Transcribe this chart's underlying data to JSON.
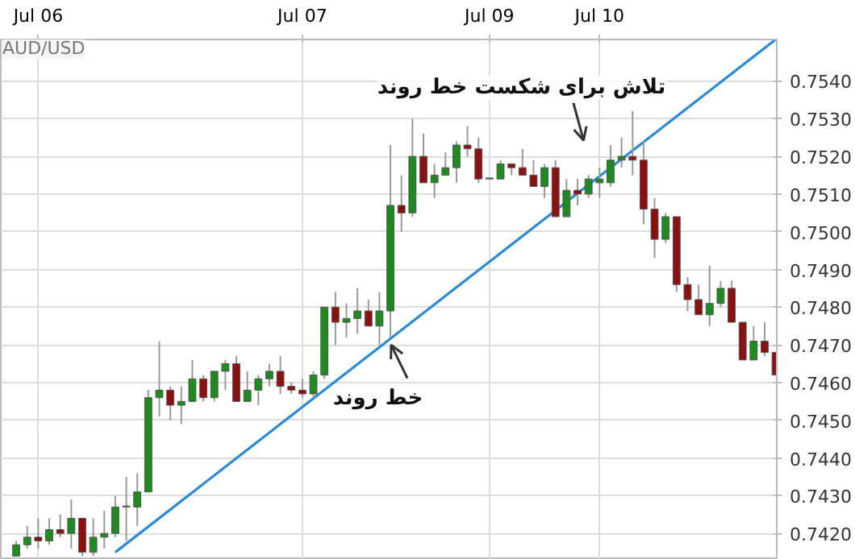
{
  "chart_data": {
    "type": "candlestick",
    "title": "AUD/USD",
    "categories": [
      null,
      null,
      "Jul 06",
      null,
      null,
      null,
      null,
      null,
      null,
      null,
      null,
      null,
      null,
      null,
      null,
      null,
      null,
      null,
      null,
      null,
      null,
      null,
      null,
      null,
      null,
      null,
      "Jul 07",
      null,
      null,
      null,
      null,
      null,
      null,
      null,
      null,
      null,
      null,
      null,
      null,
      null,
      null,
      null,
      null,
      "Jul 09",
      null,
      null,
      null,
      null,
      null,
      null,
      null,
      null,
      null,
      "Jul 10",
      null,
      null,
      null,
      null,
      null,
      null,
      null,
      null,
      null,
      null,
      null,
      null,
      null,
      null,
      null,
      null
    ],
    "ohlc": [
      [
        0.7414,
        0.7418,
        0.7414,
        0.7417
      ],
      [
        0.7417,
        0.7422,
        0.7416,
        0.7419
      ],
      [
        0.7419,
        0.7424,
        0.7416,
        0.7418
      ],
      [
        0.7418,
        0.7424,
        0.7417,
        0.7421
      ],
      [
        0.7421,
        0.7425,
        0.7419,
        0.742
      ],
      [
        0.742,
        0.7429,
        0.7416,
        0.7424
      ],
      [
        0.7424,
        0.7424,
        0.7414,
        0.7415
      ],
      [
        0.7415,
        0.7424,
        0.7414,
        0.7419
      ],
      [
        0.7419,
        0.7426,
        0.7416,
        0.742
      ],
      [
        0.742,
        0.743,
        0.7419,
        0.7427
      ],
      [
        0.7427,
        0.7435,
        0.7418,
        0.7427
      ],
      [
        0.7427,
        0.7436,
        0.7422,
        0.7431
      ],
      [
        0.7431,
        0.7458,
        0.7431,
        0.7456
      ],
      [
        0.7456,
        0.7471,
        0.7451,
        0.7458
      ],
      [
        0.7458,
        0.7459,
        0.745,
        0.7454
      ],
      [
        0.7454,
        0.7459,
        0.7449,
        0.7455
      ],
      [
        0.7455,
        0.7466,
        0.7455,
        0.7461
      ],
      [
        0.7461,
        0.7462,
        0.7455,
        0.7456
      ],
      [
        0.7456,
        0.7463,
        0.7455,
        0.7463
      ],
      [
        0.7463,
        0.7466,
        0.7458,
        0.7465
      ],
      [
        0.7465,
        0.7467,
        0.7455,
        0.7455
      ],
      [
        0.7455,
        0.7463,
        0.7455,
        0.7458
      ],
      [
        0.7458,
        0.7462,
        0.7454,
        0.7461
      ],
      [
        0.7461,
        0.7465,
        0.7459,
        0.7463
      ],
      [
        0.7463,
        0.7467,
        0.7457,
        0.7459
      ],
      [
        0.7459,
        0.746,
        0.7457,
        0.7458
      ],
      [
        0.7458,
        0.7461,
        0.7456,
        0.7457
      ],
      [
        0.7457,
        0.7463,
        0.7456,
        0.7462
      ],
      [
        0.7462,
        0.748,
        0.7461,
        0.748
      ],
      [
        0.748,
        0.7484,
        0.747,
        0.7476
      ],
      [
        0.7476,
        0.7481,
        0.7472,
        0.7477
      ],
      [
        0.7477,
        0.7485,
        0.7473,
        0.7479
      ],
      [
        0.7479,
        0.7482,
        0.7475,
        0.7475
      ],
      [
        0.7475,
        0.7484,
        0.747,
        0.7479
      ],
      [
        0.7479,
        0.7523,
        0.7472,
        0.7507
      ],
      [
        0.7507,
        0.7515,
        0.75,
        0.7505
      ],
      [
        0.7505,
        0.753,
        0.7504,
        0.752
      ],
      [
        0.752,
        0.7526,
        0.7513,
        0.7513
      ],
      [
        0.7513,
        0.7518,
        0.7509,
        0.7515
      ],
      [
        0.7515,
        0.7521,
        0.7515,
        0.7517
      ],
      [
        0.7517,
        0.7524,
        0.7513,
        0.7523
      ],
      [
        0.7523,
        0.7528,
        0.752,
        0.7522
      ],
      [
        0.7522,
        0.7525,
        0.7513,
        0.7514
      ],
      [
        0.7514,
        0.7514,
        0.7514,
        0.7514
      ],
      [
        0.7514,
        0.7519,
        0.7514,
        0.7518
      ],
      [
        0.7518,
        0.7518,
        0.7515,
        0.7517
      ],
      [
        0.7517,
        0.7522,
        0.7515,
        0.7515
      ],
      [
        0.7515,
        0.7519,
        0.7512,
        0.7512
      ],
      [
        0.7512,
        0.7518,
        0.7509,
        0.7517
      ],
      [
        0.7517,
        0.7519,
        0.7504,
        0.7504
      ],
      [
        0.7504,
        0.7514,
        0.7504,
        0.7511
      ],
      [
        0.7511,
        0.7514,
        0.7507,
        0.751
      ],
      [
        0.751,
        0.7515,
        0.7509,
        0.7514
      ],
      [
        0.7513,
        0.7517,
        0.7509,
        0.7514
      ],
      [
        0.7513,
        0.7523,
        0.7512,
        0.7519
      ],
      [
        0.7519,
        0.7525,
        0.7517,
        0.752
      ],
      [
        0.752,
        0.7532,
        0.7515,
        0.7519
      ],
      [
        0.7519,
        0.7524,
        0.7502,
        0.7506
      ],
      [
        0.7506,
        0.7509,
        0.7493,
        0.7498
      ],
      [
        0.7498,
        0.7505,
        0.7497,
        0.7504
      ],
      [
        0.7504,
        0.7504,
        0.7484,
        0.7486
      ],
      [
        0.7486,
        0.7488,
        0.7479,
        0.7482
      ],
      [
        0.7482,
        0.7486,
        0.7478,
        0.7478
      ],
      [
        0.7478,
        0.7491,
        0.7475,
        0.7481
      ],
      [
        0.7481,
        0.7487,
        0.748,
        0.7485
      ],
      [
        0.7485,
        0.7487,
        0.7476,
        0.7476
      ],
      [
        0.7476,
        0.7476,
        0.7466,
        0.7466
      ],
      [
        0.7466,
        0.7475,
        0.7466,
        0.7471
      ],
      [
        0.7471,
        0.7476,
        0.7467,
        0.7468
      ],
      [
        0.7468,
        0.7468,
        0.7462,
        0.7462
      ]
    ],
    "colors": [
      "#1f8a1f",
      "#1f8a1f",
      "#8b1010",
      "#1f8a1f",
      "#8b1010",
      "#1f8a1f",
      "#8b1010",
      "#1f8a1f",
      "#1f8a1f",
      "#1f8a1f",
      "#808080",
      "#1f8a1f",
      "#1f8a1f",
      "#1f8a1f",
      "#8b1010",
      "#1f8a1f",
      "#1f8a1f",
      "#8b1010",
      "#1f8a1f",
      "#1f8a1f",
      "#8b1010",
      "#1f8a1f",
      "#1f8a1f",
      "#1f8a1f",
      "#8b1010",
      "#8b1010",
      "#8b1010",
      "#1f8a1f",
      "#1f8a1f",
      "#8b1010",
      "#1f8a1f",
      "#1f8a1f",
      "#8b1010",
      "#1f8a1f",
      "#1f8a1f",
      "#8b1010",
      "#1f8a1f",
      "#8b1010",
      "#1f8a1f",
      "#1f8a1f",
      "#1f8a1f",
      "#8b1010",
      "#8b1010",
      "#808080",
      "#1f8a1f",
      "#8b1010",
      "#8b1010",
      "#8b1010",
      "#1f8a1f",
      "#8b1010",
      "#1f8a1f",
      "#8b1010",
      "#1f8a1f",
      "#1f8a1f",
      "#1f8a1f",
      "#1f8a1f",
      "#8b1010",
      "#8b1010",
      "#8b1010",
      "#1f8a1f",
      "#8b1010",
      "#8b1010",
      "#8b1010",
      "#1f8a1f",
      "#1f8a1f",
      "#8b1010",
      "#8b1010",
      "#1f8a1f",
      "#8b1010",
      "#8b1010"
    ],
    "series": [
      {
        "type": "line",
        "values": [
          null,
          null,
          null,
          null,
          null,
          null,
          null,
          null,
          null,
          0.7415,
          null,
          null,
          null,
          null,
          null,
          null,
          null,
          null,
          null,
          null,
          null,
          null,
          null,
          null,
          null,
          null,
          null,
          null,
          null,
          null,
          null,
          null,
          null,
          null,
          null,
          null,
          null,
          null,
          null,
          null,
          null,
          null,
          null,
          null,
          null,
          null,
          null,
          null,
          null,
          null,
          null,
          null,
          null,
          null,
          null,
          null,
          null,
          null,
          null,
          null,
          null,
          null,
          null,
          null,
          null,
          null,
          null,
          null,
          null,
          0.7551
        ],
        "color": "#2b8ad8"
      }
    ],
    "ylim": [
      0.7413,
      0.7551
    ],
    "yticks": [
      {
        "value": 0.742,
        "label": "0.7420"
      },
      {
        "value": 0.743,
        "label": "0.7430"
      },
      {
        "value": 0.744,
        "label": "0.7440"
      },
      {
        "value": 0.745,
        "label": "0.7450"
      },
      {
        "value": 0.746,
        "label": "0.7460"
      },
      {
        "value": 0.747,
        "label": "0.7470"
      },
      {
        "value": 0.748,
        "label": "0.7480"
      },
      {
        "value": 0.749,
        "label": "0.7490"
      },
      {
        "value": 0.75,
        "label": "0.7500"
      },
      {
        "value": 0.751,
        "label": "0.7510"
      },
      {
        "value": 0.752,
        "label": "0.7520"
      },
      {
        "value": 0.753,
        "label": "0.7530"
      },
      {
        "value": 0.754,
        "label": "0.7540"
      }
    ],
    "grid": true,
    "annotations": [
      {
        "text": "خط روند",
        "y": 0.747
      },
      "تلاش برای شکست خط روند"
    ]
  }
}
